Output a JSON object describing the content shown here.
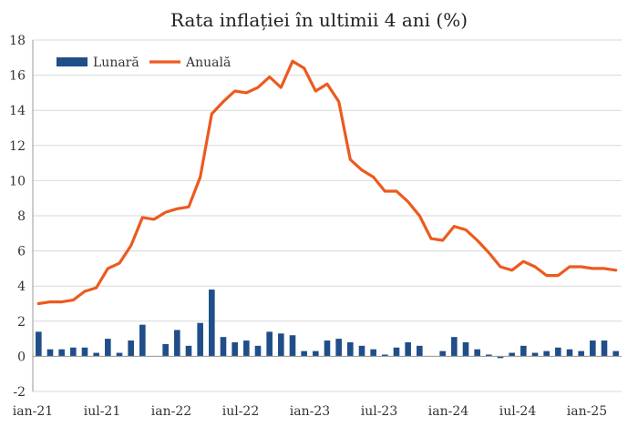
{
  "chart_data": {
    "type": "bar+line",
    "title": "Rata inflației în ultimii 4 ani (%)",
    "xlabel": "",
    "ylabel": "",
    "ylim": [
      -2,
      18
    ],
    "yticks": [
      -2,
      0,
      2,
      4,
      6,
      8,
      10,
      12,
      14,
      16,
      18
    ],
    "x_tick_labels": [
      {
        "label": "ian-21",
        "index": 0
      },
      {
        "label": "iul-21",
        "index": 6
      },
      {
        "label": "ian-22",
        "index": 12
      },
      {
        "label": "iul-22",
        "index": 18
      },
      {
        "label": "ian-23",
        "index": 24
      },
      {
        "label": "iul-23",
        "index": 30
      },
      {
        "label": "ian-24",
        "index": 36
      },
      {
        "label": "iul-24",
        "index": 42
      },
      {
        "label": "ian-25",
        "index": 48
      }
    ],
    "grid": "horizontal",
    "legend": "top-left",
    "colors": {
      "Lunară": "#1f4e89",
      "Anuală": "#ec5a1f"
    },
    "series": [
      {
        "name": "Lunară",
        "kind": "bar",
        "values": [
          1.4,
          0.4,
          0.4,
          0.5,
          0.5,
          0.2,
          1.0,
          0.2,
          0.9,
          1.8,
          0.0,
          0.7,
          1.5,
          0.6,
          1.9,
          3.8,
          1.1,
          0.8,
          0.9,
          0.6,
          1.4,
          1.3,
          1.2,
          0.3,
          0.3,
          0.9,
          1.0,
          0.8,
          0.6,
          0.4,
          0.1,
          0.5,
          0.8,
          0.6,
          0.0,
          0.3,
          1.1,
          0.8,
          0.4,
          0.1,
          -0.1,
          0.2,
          0.6,
          0.2,
          0.3,
          0.5,
          0.4,
          0.3,
          0.9,
          0.9,
          0.3
        ]
      },
      {
        "name": "Anuală",
        "kind": "line",
        "values": [
          3.0,
          3.1,
          3.1,
          3.2,
          3.7,
          3.9,
          5.0,
          5.3,
          6.3,
          7.9,
          7.8,
          8.2,
          8.4,
          8.5,
          10.2,
          13.8,
          14.5,
          15.1,
          15.0,
          15.3,
          15.9,
          15.3,
          16.8,
          16.4,
          15.1,
          15.5,
          14.5,
          11.2,
          10.6,
          10.2,
          9.4,
          9.4,
          8.8,
          8.0,
          6.7,
          6.6,
          7.4,
          7.2,
          6.6,
          5.9,
          5.1,
          4.9,
          5.4,
          5.1,
          4.6,
          4.6,
          5.1,
          5.1,
          5.0,
          5.0,
          4.9
        ]
      }
    ]
  }
}
